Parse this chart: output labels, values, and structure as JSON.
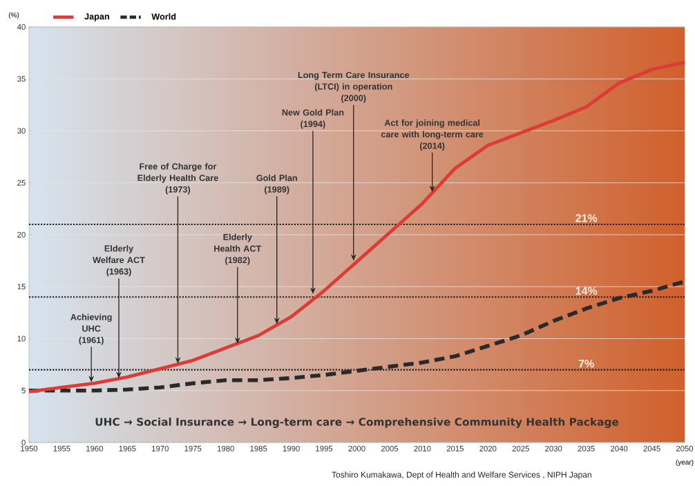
{
  "chart_data": {
    "type": "line",
    "xlabel": "(year)",
    "ylabel": "(%)",
    "x": [
      1950,
      1955,
      1960,
      1965,
      1970,
      1975,
      1980,
      1985,
      1990,
      1995,
      2000,
      2005,
      2010,
      2015,
      2020,
      2025,
      2030,
      2035,
      2040,
      2045,
      2050
    ],
    "series": [
      {
        "name": "Japan",
        "color": "#dc3b36",
        "line_style": "solid",
        "values": [
          4.9,
          5.3,
          5.7,
          6.3,
          7.1,
          7.9,
          9.1,
          10.3,
          12.1,
          14.6,
          17.4,
          20.2,
          23.0,
          26.4,
          28.6,
          29.8,
          31.0,
          32.3,
          34.6,
          35.9,
          36.6
        ]
      },
      {
        "name": "World",
        "color": "#2a2a2a",
        "line_style": "dashed",
        "values": [
          5.0,
          5.0,
          5.0,
          5.1,
          5.3,
          5.7,
          6.0,
          6.0,
          6.2,
          6.5,
          6.9,
          7.3,
          7.7,
          8.3,
          9.3,
          10.3,
          11.7,
          12.9,
          13.9,
          14.6,
          15.5
        ]
      }
    ],
    "xlim": [
      1950,
      2050
    ],
    "ylim": [
      0,
      40
    ],
    "xticks": [
      1950,
      1955,
      1960,
      1965,
      1970,
      1975,
      1980,
      1985,
      1990,
      1995,
      2000,
      2005,
      2010,
      2015,
      2020,
      2025,
      2030,
      2035,
      2040,
      2045,
      2050
    ],
    "yticks": [
      0,
      5,
      10,
      15,
      20,
      25,
      30,
      35,
      40
    ],
    "grid": "y",
    "legend": "top left",
    "ref_lines": [
      {
        "axis": "y",
        "value": 21,
        "label": "21%",
        "color": "#1a1a1a",
        "line_style": "dotted"
      },
      {
        "axis": "y",
        "value": 14,
        "label": "14%",
        "color": "#1a1a1a",
        "line_style": "dotted"
      },
      {
        "axis": "y",
        "value": 7,
        "label": "7%",
        "color": "#1a1a1a",
        "line_style": "dotted"
      }
    ],
    "annotations": [
      {
        "text": "Achieving\nUHC\n(1961)",
        "x": 1959.5,
        "y": 5.8
      },
      {
        "text": "Elderly\nWelfare ACT\n(1963)",
        "x": 1963.7,
        "y": 6.2
      },
      {
        "text": "Free of Charge for\nElderly Health Care\n(1973)",
        "x": 1972.7,
        "y": 7.6
      },
      {
        "text": "Elderly\nHealth ACT\n(1982)",
        "x": 1981.8,
        "y": 9.5
      },
      {
        "text": "Gold Plan\n(1989)",
        "x": 1987.8,
        "y": 11.4
      },
      {
        "text": "New Gold Plan\n(1994)",
        "x": 1993.3,
        "y": 14.3
      },
      {
        "text": "Long Term Care Insurance\n(LTCI) in operation\n(2000)",
        "x": 1999.5,
        "y": 17.5
      },
      {
        "text": "Act for joining medical\ncare with long-term care\n(2014)",
        "x": 2011.5,
        "y": 24.1
      },
      "UHC → Social Insurance → Long-term care → Comprehensive Community Health Package",
      "Toshiro Kumakawa, Dept of Health and Welfare Services , NIPH Japan"
    ]
  }
}
